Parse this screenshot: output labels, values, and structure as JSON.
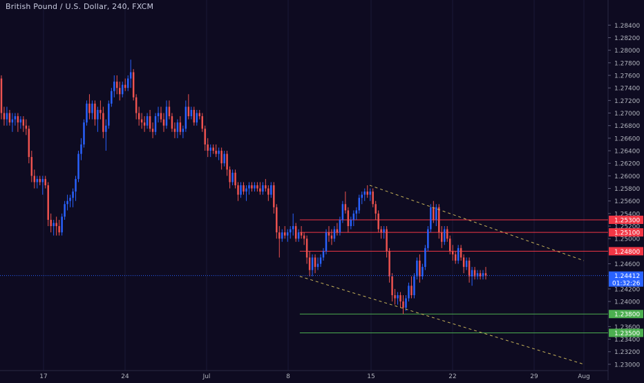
{
  "chart_data": {
    "type": "candlestick",
    "title": "British Pound / U.S. Dollar, 240, FXCM",
    "ylim": [
      1.229,
      1.288
    ],
    "y_ticks": [
      "1.28400",
      "1.28200",
      "1.28000",
      "1.27800",
      "1.27600",
      "1.27400",
      "1.27200",
      "1.27000",
      "1.26800",
      "1.26600",
      "1.26400",
      "1.26200",
      "1.26000",
      "1.25800",
      "1.25600",
      "1.25400",
      "1.25200",
      "1.25000",
      "1.24600",
      "1.24200",
      "1.24000",
      "1.23600",
      "1.23400",
      "1.23200",
      "1.23000"
    ],
    "x_ticks": [
      "17",
      "24",
      "Jul",
      "8",
      "15",
      "22",
      "29",
      "Aug"
    ],
    "price_lines": [
      {
        "value": 1.253,
        "label": "1.25300",
        "color": "#f23645"
      },
      {
        "value": 1.251,
        "label": "1.25100",
        "color": "#f23645"
      },
      {
        "value": 1.248,
        "label": "1.24800",
        "color": "#f23645"
      },
      {
        "value": 1.238,
        "label": "1.23800",
        "color": "#4caf50"
      },
      {
        "value": 1.235,
        "label": "1.23500",
        "color": "#4caf50"
      }
    ],
    "last_price": {
      "value": 1.24412,
      "label": "1.24412",
      "countdown": "01:32:26",
      "color": "#2962ff"
    },
    "trendlines": [
      {
        "from": [
          "Jul 15",
          1.2585
        ],
        "to": [
          "Aug 1",
          1.2465
        ],
        "color": "#c8b45a",
        "style": "dashed"
      },
      {
        "from": [
          "Jul 9",
          1.244
        ],
        "to": [
          "Aug 1",
          1.23
        ],
        "color": "#c8b45a",
        "style": "dashed"
      }
    ],
    "up_color": "#2962ff",
    "down_color": "#ef5350",
    "ohlc": [
      [
        1.2755,
        1.276,
        1.269,
        1.27
      ],
      [
        1.27,
        1.271,
        1.268,
        1.269
      ],
      [
        1.269,
        1.271,
        1.268,
        1.27
      ],
      [
        1.27,
        1.2705,
        1.268,
        1.2685
      ],
      [
        1.2685,
        1.27,
        1.267,
        1.269
      ],
      [
        1.269,
        1.27,
        1.268,
        1.2695
      ],
      [
        1.2695,
        1.27,
        1.267,
        1.2685
      ],
      [
        1.2685,
        1.2695,
        1.2675,
        1.269
      ],
      [
        1.269,
        1.2695,
        1.267,
        1.268
      ],
      [
        1.268,
        1.269,
        1.2665,
        1.2675
      ],
      [
        1.2675,
        1.268,
        1.262,
        1.263
      ],
      [
        1.263,
        1.264,
        1.259,
        1.26
      ],
      [
        1.26,
        1.261,
        1.258,
        1.259
      ],
      [
        1.259,
        1.26,
        1.258,
        1.2595
      ],
      [
        1.2595,
        1.26,
        1.2585,
        1.259
      ],
      [
        1.259,
        1.26,
        1.257,
        1.2595
      ],
      [
        1.2595,
        1.26,
        1.258,
        1.2585
      ],
      [
        1.2585,
        1.259,
        1.252,
        1.253
      ],
      [
        1.253,
        1.254,
        1.251,
        1.252
      ],
      [
        1.252,
        1.253,
        1.2505,
        1.2525
      ],
      [
        1.2525,
        1.2535,
        1.2505,
        1.252
      ],
      [
        1.252,
        1.253,
        1.2505,
        1.251
      ],
      [
        1.251,
        1.254,
        1.2505,
        1.2535
      ],
      [
        1.2535,
        1.256,
        1.253,
        1.2555
      ],
      [
        1.2555,
        1.257,
        1.2545,
        1.256
      ],
      [
        1.256,
        1.257,
        1.255,
        1.2565
      ],
      [
        1.2565,
        1.258,
        1.255,
        1.2575
      ],
      [
        1.2575,
        1.26,
        1.256,
        1.2595
      ],
      [
        1.2595,
        1.264,
        1.259,
        1.2635
      ],
      [
        1.2635,
        1.266,
        1.2625,
        1.265
      ],
      [
        1.265,
        1.269,
        1.2645,
        1.2685
      ],
      [
        1.2685,
        1.272,
        1.268,
        1.2715
      ],
      [
        1.2715,
        1.273,
        1.269,
        1.27
      ],
      [
        1.27,
        1.272,
        1.269,
        1.2715
      ],
      [
        1.2715,
        1.272,
        1.268,
        1.269
      ],
      [
        1.269,
        1.271,
        1.267,
        1.2705
      ],
      [
        1.2705,
        1.272,
        1.269,
        1.27
      ],
      [
        1.27,
        1.271,
        1.266,
        1.267
      ],
      [
        1.267,
        1.269,
        1.264,
        1.268
      ],
      [
        1.268,
        1.272,
        1.2675,
        1.2715
      ],
      [
        1.2715,
        1.274,
        1.271,
        1.2735
      ],
      [
        1.2735,
        1.276,
        1.2725,
        1.275
      ],
      [
        1.275,
        1.276,
        1.273,
        1.274
      ],
      [
        1.274,
        1.275,
        1.272,
        1.273
      ],
      [
        1.273,
        1.275,
        1.2725,
        1.2745
      ],
      [
        1.2745,
        1.2755,
        1.2735,
        1.274
      ],
      [
        1.274,
        1.276,
        1.2735,
        1.2755
      ],
      [
        1.2755,
        1.2785,
        1.274,
        1.2765
      ],
      [
        1.2765,
        1.277,
        1.272,
        1.2725
      ],
      [
        1.2725,
        1.273,
        1.269,
        1.27
      ],
      [
        1.27,
        1.271,
        1.268,
        1.269
      ],
      [
        1.269,
        1.27,
        1.2675,
        1.2685
      ],
      [
        1.2685,
        1.2695,
        1.267,
        1.268
      ],
      [
        1.268,
        1.27,
        1.2675,
        1.2695
      ],
      [
        1.2695,
        1.2705,
        1.267,
        1.2675
      ],
      [
        1.2675,
        1.2685,
        1.266,
        1.267
      ],
      [
        1.267,
        1.27,
        1.2665,
        1.2695
      ],
      [
        1.2695,
        1.271,
        1.2685,
        1.27
      ],
      [
        1.27,
        1.271,
        1.2685,
        1.269
      ],
      [
        1.269,
        1.27,
        1.267,
        1.268
      ],
      [
        1.268,
        1.272,
        1.2675,
        1.271
      ],
      [
        1.271,
        1.272,
        1.269,
        1.2695
      ],
      [
        1.2695,
        1.27,
        1.267,
        1.2675
      ],
      [
        1.2675,
        1.2685,
        1.266,
        1.267
      ],
      [
        1.267,
        1.269,
        1.266,
        1.2685
      ],
      [
        1.2685,
        1.2695,
        1.2665,
        1.267
      ],
      [
        1.267,
        1.268,
        1.266,
        1.2675
      ],
      [
        1.2675,
        1.272,
        1.267,
        1.271
      ],
      [
        1.271,
        1.273,
        1.269,
        1.2695
      ],
      [
        1.2695,
        1.271,
        1.269,
        1.2705
      ],
      [
        1.2705,
        1.271,
        1.268,
        1.2685
      ],
      [
        1.2685,
        1.2705,
        1.268,
        1.27
      ],
      [
        1.27,
        1.2705,
        1.269,
        1.2695
      ],
      [
        1.2695,
        1.27,
        1.267,
        1.2675
      ],
      [
        1.2675,
        1.268,
        1.264,
        1.265
      ],
      [
        1.265,
        1.266,
        1.263,
        1.264
      ],
      [
        1.264,
        1.265,
        1.263,
        1.2645
      ],
      [
        1.2645,
        1.265,
        1.2635,
        1.264
      ],
      [
        1.264,
        1.265,
        1.263,
        1.2635
      ],
      [
        1.2635,
        1.2645,
        1.2625,
        1.264
      ],
      [
        1.264,
        1.2645,
        1.261,
        1.262
      ],
      [
        1.262,
        1.264,
        1.2615,
        1.2635
      ],
      [
        1.2635,
        1.264,
        1.26,
        1.261
      ],
      [
        1.261,
        1.2615,
        1.258,
        1.259
      ],
      [
        1.259,
        1.261,
        1.2585,
        1.2605
      ],
      [
        1.2605,
        1.261,
        1.258,
        1.2585
      ],
      [
        1.2585,
        1.259,
        1.256,
        1.257
      ],
      [
        1.257,
        1.259,
        1.2565,
        1.2585
      ],
      [
        1.2585,
        1.259,
        1.257,
        1.2575
      ],
      [
        1.2575,
        1.2585,
        1.256,
        1.258
      ],
      [
        1.258,
        1.259,
        1.257,
        1.2585
      ],
      [
        1.2585,
        1.259,
        1.2575,
        1.258
      ],
      [
        1.258,
        1.259,
        1.2575,
        1.2585
      ],
      [
        1.2585,
        1.259,
        1.2575,
        1.258
      ],
      [
        1.258,
        1.259,
        1.257,
        1.2575
      ],
      [
        1.2575,
        1.259,
        1.257,
        1.2585
      ],
      [
        1.2585,
        1.2595,
        1.2575,
        1.258
      ],
      [
        1.258,
        1.2585,
        1.256,
        1.257
      ],
      [
        1.257,
        1.259,
        1.2565,
        1.2585
      ],
      [
        1.2585,
        1.259,
        1.254,
        1.255
      ],
      [
        1.255,
        1.2555,
        1.25,
        1.251
      ],
      [
        1.251,
        1.252,
        1.247,
        1.25
      ],
      [
        1.25,
        1.2515,
        1.2495,
        1.251
      ],
      [
        1.251,
        1.252,
        1.25,
        1.2505
      ],
      [
        1.2505,
        1.2515,
        1.2495,
        1.251
      ],
      [
        1.251,
        1.252,
        1.25,
        1.2515
      ],
      [
        1.2515,
        1.254,
        1.2505,
        1.252
      ],
      [
        1.252,
        1.2525,
        1.2495,
        1.25
      ],
      [
        1.25,
        1.2515,
        1.2495,
        1.251
      ],
      [
        1.251,
        1.252,
        1.25,
        1.2505
      ],
      [
        1.2505,
        1.251,
        1.249,
        1.25
      ],
      [
        1.25,
        1.2505,
        1.246,
        1.247
      ],
      [
        1.247,
        1.248,
        1.244,
        1.245
      ],
      [
        1.245,
        1.2475,
        1.244,
        1.247
      ],
      [
        1.247,
        1.2475,
        1.2445,
        1.2455
      ],
      [
        1.2455,
        1.247,
        1.245,
        1.246
      ],
      [
        1.246,
        1.2475,
        1.2455,
        1.247
      ],
      [
        1.247,
        1.2485,
        1.2465,
        1.248
      ],
      [
        1.248,
        1.2515,
        1.2475,
        1.251
      ],
      [
        1.251,
        1.252,
        1.2495,
        1.2505
      ],
      [
        1.2505,
        1.2515,
        1.249,
        1.25
      ],
      [
        1.25,
        1.252,
        1.2495,
        1.2515
      ],
      [
        1.2515,
        1.2525,
        1.2505,
        1.251
      ],
      [
        1.251,
        1.2535,
        1.2505,
        1.253
      ],
      [
        1.253,
        1.256,
        1.2525,
        1.2555
      ],
      [
        1.2555,
        1.2575,
        1.254,
        1.2545
      ],
      [
        1.2545,
        1.255,
        1.251,
        1.252
      ],
      [
        1.252,
        1.2535,
        1.2515,
        1.253
      ],
      [
        1.253,
        1.2545,
        1.252,
        1.254
      ],
      [
        1.254,
        1.255,
        1.253,
        1.2545
      ],
      [
        1.2545,
        1.257,
        1.254,
        1.2565
      ],
      [
        1.2565,
        1.2575,
        1.2555,
        1.257
      ],
      [
        1.257,
        1.258,
        1.256,
        1.2575
      ],
      [
        1.2575,
        1.2585,
        1.2565,
        1.257
      ],
      [
        1.257,
        1.258,
        1.256,
        1.2575
      ],
      [
        1.2575,
        1.258,
        1.255,
        1.2555
      ],
      [
        1.2555,
        1.256,
        1.253,
        1.254
      ],
      [
        1.254,
        1.2545,
        1.251,
        1.2515
      ],
      [
        1.2515,
        1.252,
        1.25,
        1.251
      ],
      [
        1.251,
        1.252,
        1.25,
        1.2515
      ],
      [
        1.2515,
        1.252,
        1.247,
        1.248
      ],
      [
        1.248,
        1.2485,
        1.243,
        1.244
      ],
      [
        1.244,
        1.2445,
        1.24,
        1.241
      ],
      [
        1.241,
        1.242,
        1.2395,
        1.2405
      ],
      [
        1.2405,
        1.2415,
        1.2395,
        1.241
      ],
      [
        1.241,
        1.2415,
        1.239,
        1.24
      ],
      [
        1.24,
        1.241,
        1.238,
        1.239
      ],
      [
        1.239,
        1.241,
        1.2385,
        1.2405
      ],
      [
        1.2405,
        1.243,
        1.24,
        1.2425
      ],
      [
        1.2425,
        1.244,
        1.2405,
        1.241
      ],
      [
        1.241,
        1.2445,
        1.2405,
        1.244
      ],
      [
        1.244,
        1.247,
        1.2435,
        1.2465
      ],
      [
        1.2465,
        1.2475,
        1.243,
        1.244
      ],
      [
        1.244,
        1.246,
        1.2435,
        1.2455
      ],
      [
        1.2455,
        1.249,
        1.245,
        1.2485
      ],
      [
        1.2485,
        1.252,
        1.248,
        1.2515
      ],
      [
        1.2515,
        1.2555,
        1.251,
        1.255
      ],
      [
        1.255,
        1.256,
        1.2525,
        1.253
      ],
      [
        1.253,
        1.2555,
        1.252,
        1.255
      ],
      [
        1.255,
        1.2555,
        1.25,
        1.251
      ],
      [
        1.251,
        1.252,
        1.2485,
        1.2495
      ],
      [
        1.2495,
        1.252,
        1.249,
        1.2515
      ],
      [
        1.2515,
        1.252,
        1.2495,
        1.25
      ],
      [
        1.25,
        1.2505,
        1.2475,
        1.248
      ],
      [
        1.248,
        1.249,
        1.2465,
        1.2475
      ],
      [
        1.2475,
        1.248,
        1.246,
        1.2465
      ],
      [
        1.2465,
        1.249,
        1.246,
        1.2485
      ],
      [
        1.2485,
        1.249,
        1.2465,
        1.247
      ],
      [
        1.247,
        1.2475,
        1.2445,
        1.2455
      ],
      [
        1.2455,
        1.247,
        1.245,
        1.2465
      ],
      [
        1.2465,
        1.247,
        1.243,
        1.244
      ],
      [
        1.244,
        1.2455,
        1.2425,
        1.245
      ],
      [
        1.245,
        1.2455,
        1.2435,
        1.244
      ],
      [
        1.244,
        1.245,
        1.2435,
        1.2445
      ],
      [
        1.2445,
        1.245,
        1.2435,
        1.244
      ],
      [
        1.244,
        1.245,
        1.2435,
        1.2445
      ],
      [
        1.2445,
        1.2455,
        1.2435,
        1.2441
      ]
    ]
  }
}
